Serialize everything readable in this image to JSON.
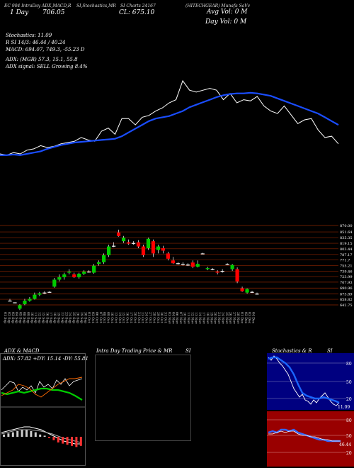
{
  "header": {
    "line1": "EC 904 IntraDay ADX,MACD,R",
    "line1b": "SI,Stochastics,MR",
    "line1c": "SI Charts 24167",
    "line1d": "(HITECHGEAR) Munafa SaVv",
    "badge_day": "1 Day",
    "badge_day_val": "706.05",
    "close_label": "CL: 675.10",
    "avg_vol": "Avg Vol: 0   M",
    "day_vol": "Day Vol: 0   M"
  },
  "indicators": {
    "stoch": "Stochastics: 11.09",
    "rsi": "R  SI 14/3: 46.44  / 40.24",
    "macd": "MACD: 694.07,  749.3,  -55.23 D",
    "adx": "ADX:                (MGR) 57.3,  15.1,  55.8",
    "adx_signal": "ADX  signal: SELL Growing 8.4%"
  },
  "price_levels": [
    "870.00",
    "851.64",
    "835.35",
    "819.15",
    "803.44",
    "787.17",
    "771.7",
    "755.21",
    "739.46",
    "723.99",
    "707.93",
    "690.96",
    "673.89",
    "658.82",
    "642.75"
  ],
  "date_labels": [
    "01 Sep",
    "02 Sep",
    "03 Sep",
    "04 Sep",
    "05 Sep",
    "08 Sep",
    "09 Sep",
    "10 Sep",
    "11 Sep",
    "12 Sep",
    "15 Sep",
    "16 Sep",
    "17 Sep",
    "18 Sep",
    "19 Sep",
    "22 Sep",
    "23 Sep",
    "24 Sep",
    "25 Sep",
    "26 Sep",
    "29 Sep",
    "30 Sep",
    "01 Oct",
    "03 Oct",
    "06 Oct",
    "07 Oct",
    "08 Oct",
    "09 Oct",
    "10 Oct",
    "13 Oct",
    "14 Oct",
    "15 Oct",
    "16 Oct",
    "17 Oct",
    "20 Oct",
    "21 Oct",
    "23 Oct",
    "24 Oct",
    "27 Oct",
    "28 Oct",
    "29 Oct",
    "30 Oct",
    "31 Oct",
    "03 Nov",
    "04 Nov",
    "06 Nov",
    "07 Nov",
    "10 Nov",
    "11 Nov",
    "12 Nov",
    "13 Nov",
    "14 Nov",
    "17 Nov",
    "18 Nov",
    "19 Nov",
    "20 Nov",
    "21 Nov",
    "24 Nov",
    "25 Nov",
    "26 Nov",
    "27 Nov",
    "28 Nov",
    "01 Dec",
    "02 Dec",
    "03 Dec",
    "04 Dec"
  ],
  "panels": {
    "adx_macd_title": "ADX  & MACD",
    "adx_values": "ADX: 57.82  +DY: 15.14  -DY: 55.81",
    "intraday_title": "Intra  Day Trading Price  & MR",
    "intraday_si": "SI",
    "stoch_title": "Stochastics & R",
    "stoch_si": "SI",
    "stoch_levels": [
      "80",
      "50",
      "20"
    ],
    "stoch_value": "11.09",
    "rsi_levels": [
      "80",
      "50",
      "20"
    ],
    "rsi_value": "46.44"
  },
  "colors": {
    "up": "#00cc00",
    "down": "#ff0000",
    "sma": "#1a4dff",
    "hline": "#8b2500",
    "rsi_bg": "#990000",
    "stoch_bg": "#000080"
  },
  "chart_data": {
    "type": "candlestick",
    "ylim": [
      642.75,
      870
    ],
    "candles": [
      {
        "o": 655,
        "h": 660,
        "l": 655,
        "c": 655
      },
      {
        "o": 650,
        "h": 650,
        "l": 650,
        "c": 650
      },
      {
        "o": 632,
        "h": 645,
        "l": 628,
        "c": 642
      },
      {
        "o": 645,
        "h": 660,
        "l": 642,
        "c": 655
      },
      {
        "o": 655,
        "h": 665,
        "l": 652,
        "c": 660
      },
      {
        "o": 660,
        "h": 678,
        "l": 658,
        "c": 672
      },
      {
        "o": 672,
        "h": 680,
        "l": 668,
        "c": 676
      },
      {
        "o": 676,
        "h": 682,
        "l": 674,
        "c": 678
      },
      {
        "o": 680,
        "h": 682,
        "l": 678,
        "c": 680
      },
      {
        "o": 695,
        "h": 720,
        "l": 692,
        "c": 715
      },
      {
        "o": 715,
        "h": 730,
        "l": 710,
        "c": 722
      },
      {
        "o": 722,
        "h": 735,
        "l": 715,
        "c": 730
      },
      {
        "o": 735,
        "h": 745,
        "l": 730,
        "c": 738
      },
      {
        "o": 730,
        "h": 735,
        "l": 720,
        "c": 722
      },
      {
        "o": 722,
        "h": 735,
        "l": 718,
        "c": 732
      },
      {
        "o": 732,
        "h": 742,
        "l": 728,
        "c": 738
      },
      {
        "o": 738,
        "h": 742,
        "l": 735,
        "c": 738
      },
      {
        "o": 735,
        "h": 760,
        "l": 732,
        "c": 755
      },
      {
        "o": 760,
        "h": 770,
        "l": 755,
        "c": 765
      },
      {
        "o": 765,
        "h": 790,
        "l": 760,
        "c": 785
      },
      {
        "o": 785,
        "h": 815,
        "l": 780,
        "c": 810
      },
      {
        "o": 812,
        "h": 822,
        "l": 808,
        "c": 812
      },
      {
        "o": 850,
        "h": 858,
        "l": 838,
        "c": 840
      },
      {
        "o": 825,
        "h": 840,
        "l": 820,
        "c": 835
      },
      {
        "o": 822,
        "h": 830,
        "l": 815,
        "c": 818
      },
      {
        "o": 818,
        "h": 825,
        "l": 815,
        "c": 820
      },
      {
        "o": 822,
        "h": 828,
        "l": 805,
        "c": 810
      },
      {
        "o": 810,
        "h": 815,
        "l": 780,
        "c": 785
      },
      {
        "o": 805,
        "h": 835,
        "l": 800,
        "c": 832
      },
      {
        "o": 825,
        "h": 830,
        "l": 780,
        "c": 790
      },
      {
        "o": 800,
        "h": 815,
        "l": 790,
        "c": 810
      },
      {
        "o": 805,
        "h": 812,
        "l": 790,
        "c": 798
      },
      {
        "o": 790,
        "h": 795,
        "l": 770,
        "c": 775
      },
      {
        "o": 770,
        "h": 780,
        "l": 760,
        "c": 762
      },
      {
        "o": 762,
        "h": 765,
        "l": 758,
        "c": 760
      },
      {
        "o": 760,
        "h": 765,
        "l": 755,
        "c": 758
      },
      {
        "o": 758,
        "h": 762,
        "l": 754,
        "c": 756
      },
      {
        "o": 764,
        "h": 770,
        "l": 748,
        "c": 752
      },
      {
        "o": 752,
        "h": 770,
        "l": 750,
        "c": 760
      },
      {
        "o": 790,
        "h": 792,
        "l": 788,
        "c": 790
      },
      {
        "o": 745,
        "h": 752,
        "l": 742,
        "c": 748
      },
      {
        "o": 745,
        "h": 748,
        "l": 742,
        "c": 744
      },
      {
        "o": 738,
        "h": 742,
        "l": 730,
        "c": 735
      },
      {
        "o": 740,
        "h": 745,
        "l": 735,
        "c": 738
      },
      {
        "o": 760,
        "h": 762,
        "l": 757,
        "c": 760
      },
      {
        "o": 745,
        "h": 760,
        "l": 740,
        "c": 757
      },
      {
        "o": 745,
        "h": 750,
        "l": 705,
        "c": 710
      },
      {
        "o": 690,
        "h": 695,
        "l": 680,
        "c": 682
      },
      {
        "o": 678,
        "h": 690,
        "l": 675,
        "c": 688
      },
      {
        "o": 680,
        "h": 683,
        "l": 677,
        "c": 680
      },
      {
        "o": 675,
        "h": 678,
        "l": 672,
        "c": 675
      }
    ],
    "sma": [
      712,
      712,
      713,
      712,
      714,
      716,
      718,
      722,
      725,
      728,
      730,
      732,
      733,
      734,
      735,
      736,
      737,
      738,
      742,
      748,
      754,
      760,
      766,
      770,
      772,
      774,
      778,
      782,
      788,
      792,
      796,
      800,
      804,
      807,
      809,
      810,
      810,
      811,
      810,
      808,
      806,
      802,
      798,
      794,
      790,
      786,
      782,
      778,
      772,
      766,
      760
    ],
    "close_line": [
      714,
      712,
      716,
      714,
      720,
      722,
      727,
      724,
      726,
      730,
      732,
      734,
      740,
      736,
      734,
      750,
      755,
      745,
      770,
      770,
      760,
      772,
      775,
      782,
      787,
      795,
      800,
      830,
      815,
      812,
      815,
      818,
      815,
      800,
      810,
      795,
      800,
      798,
      805,
      790,
      782,
      778,
      790,
      776,
      762,
      768,
      770,
      752,
      740,
      742,
      730
    ]
  }
}
